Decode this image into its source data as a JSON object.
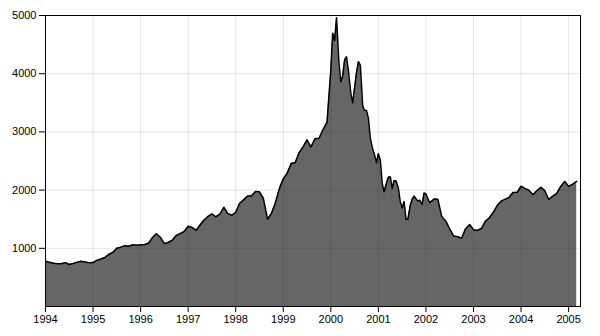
{
  "chart_data": {
    "type": "area",
    "x": [
      1994.0,
      1994.08,
      1994.17,
      1994.25,
      1994.33,
      1994.42,
      1994.5,
      1994.58,
      1994.67,
      1994.75,
      1994.83,
      1994.92,
      1995.0,
      1995.08,
      1995.17,
      1995.25,
      1995.33,
      1995.42,
      1995.5,
      1995.58,
      1995.67,
      1995.75,
      1995.83,
      1995.92,
      1996.0,
      1996.08,
      1996.17,
      1996.25,
      1996.33,
      1996.42,
      1996.5,
      1996.58,
      1996.67,
      1996.75,
      1996.83,
      1996.92,
      1997.0,
      1997.08,
      1997.17,
      1997.25,
      1997.33,
      1997.42,
      1997.5,
      1997.58,
      1997.67,
      1997.75,
      1997.83,
      1997.92,
      1998.0,
      1998.08,
      1998.17,
      1998.25,
      1998.33,
      1998.42,
      1998.5,
      1998.58,
      1998.67,
      1998.75,
      1998.83,
      1998.92,
      1999.0,
      1999.08,
      1999.17,
      1999.25,
      1999.33,
      1999.42,
      1999.5,
      1999.58,
      1999.67,
      1999.75,
      1999.83,
      1999.92,
      2000.0,
      2000.04,
      2000.08,
      2000.12,
      2000.17,
      2000.21,
      2000.25,
      2000.29,
      2000.33,
      2000.37,
      2000.42,
      2000.46,
      2000.5,
      2000.54,
      2000.58,
      2000.62,
      2000.67,
      2000.71,
      2000.75,
      2000.79,
      2000.83,
      2000.87,
      2000.92,
      2000.96,
      2001.0,
      2001.04,
      2001.08,
      2001.12,
      2001.17,
      2001.21,
      2001.25,
      2001.29,
      2001.33,
      2001.37,
      2001.42,
      2001.46,
      2001.5,
      2001.54,
      2001.58,
      2001.62,
      2001.67,
      2001.71,
      2001.75,
      2001.79,
      2001.83,
      2001.87,
      2001.92,
      2001.96,
      2002.0,
      2002.08,
      2002.17,
      2002.25,
      2002.33,
      2002.42,
      2002.5,
      2002.58,
      2002.67,
      2002.75,
      2002.83,
      2002.92,
      2003.0,
      2003.08,
      2003.17,
      2003.25,
      2003.33,
      2003.42,
      2003.5,
      2003.58,
      2003.67,
      2003.75,
      2003.83,
      2003.92,
      2004.0,
      2004.08,
      2004.17,
      2004.25,
      2004.33,
      2004.42,
      2004.5,
      2004.58,
      2004.67,
      2004.75,
      2004.83,
      2004.92,
      2005.0,
      2005.08,
      2005.17
    ],
    "values": [
      776,
      762,
      744,
      733,
      735,
      754,
      722,
      738,
      762,
      778,
      766,
      751,
      755,
      793,
      817,
      843,
      893,
      933,
      1001,
      1020,
      1044,
      1036,
      1059,
      1052,
      1060,
      1060,
      1090,
      1185,
      1249,
      1185,
      1080,
      1100,
      1142,
      1220,
      1251,
      1291,
      1380,
      1360,
      1310,
      1400,
      1482,
      1550,
      1590,
      1540,
      1590,
      1705,
      1600,
      1568,
      1620,
      1770,
      1836,
      1900,
      1900,
      1978,
      1970,
      1860,
      1499,
      1600,
      1771,
      2030,
      2193,
      2288,
      2461,
      2470,
      2638,
      2747,
      2864,
      2739,
      2887,
      2887,
      3028,
      3164,
      4069,
      4696,
      4572,
      4963,
      4188,
      3860,
      3966,
      4240,
      4290,
      4050,
      3663,
      3500,
      3766,
      4020,
      4206,
      4148,
      3450,
      3369,
      3369,
      3232,
      2892,
      2739,
      2600,
      2471,
      2626,
      2518,
      2117,
      1972,
      2117,
      2221,
      2230,
      2028,
      2161,
      2160,
      2038,
      1800,
      1695,
      1805,
      1498,
      1498,
      1739,
      1840,
      1896,
      1853,
      1811,
      1826,
      1756,
      1950,
      1934,
      1782,
      1845,
      1843,
      1553,
      1463,
      1335,
      1213,
      1199,
      1172,
      1329,
      1410,
      1320,
      1307,
      1341,
      1464,
      1521,
      1623,
      1735,
      1810,
      1844,
      1876,
      1960,
      1961,
      2066,
      2030,
      1994,
      1920,
      1987,
      2048,
      1990,
      1838,
      1897,
      1942,
      2057,
      2150,
      2063,
      2100,
      2150
    ],
    "xlim": [
      1994.0,
      2005.25
    ],
    "xticks": [
      1994,
      1995,
      1996,
      1997,
      1998,
      1999,
      2000,
      2001,
      2002,
      2003,
      2004,
      2005
    ],
    "ylim": [
      0,
      5000
    ],
    "yticks": [
      1000,
      2000,
      3000,
      4000,
      5000
    ],
    "grid": true
  }
}
